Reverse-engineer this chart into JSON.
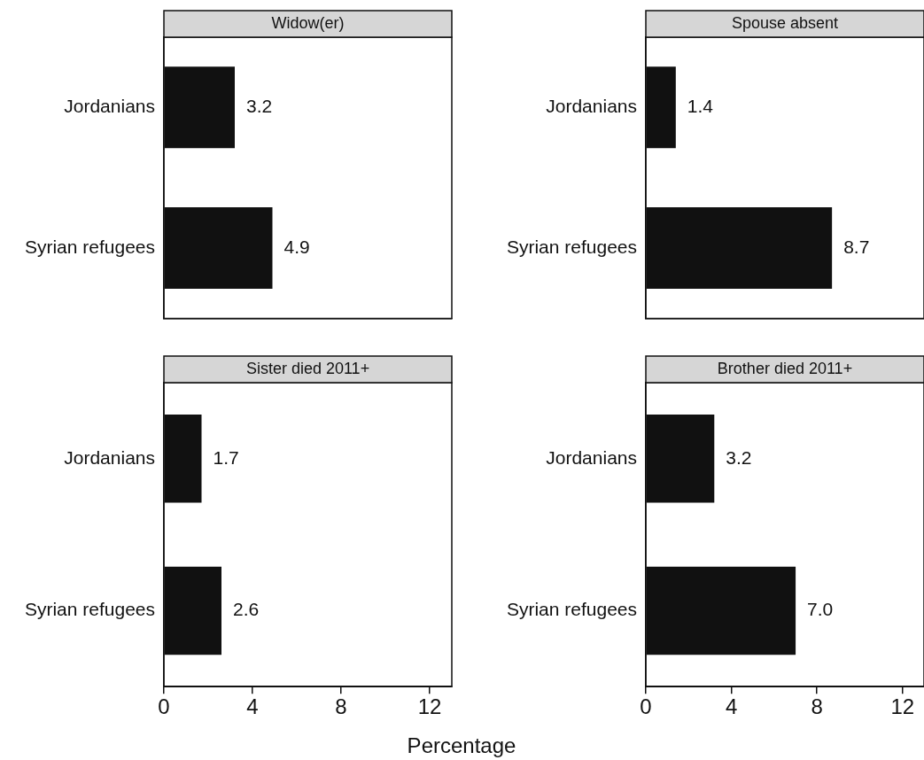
{
  "chart_data": [
    {
      "type": "bar",
      "orientation": "horizontal",
      "title": "Widow(er)",
      "categories": [
        "Jordanians",
        "Syrian refugees"
      ],
      "values": [
        3.2,
        4.9
      ],
      "value_labels": [
        "3.2",
        "4.9"
      ],
      "color": "#111111",
      "xlim": [
        0,
        13
      ],
      "xticks": [
        0,
        4,
        8,
        12
      ],
      "tick_labels": "y"
    },
    {
      "type": "bar",
      "orientation": "horizontal",
      "title": "Spouse absent",
      "categories": [
        "Jordanians",
        "Syrian refugees"
      ],
      "values": [
        1.4,
        8.7
      ],
      "value_labels": [
        "1.4",
        "8.7"
      ],
      "color": "#111111",
      "xlim": [
        0,
        13
      ],
      "xticks": [
        0,
        4,
        8,
        12
      ],
      "tick_labels": "y"
    },
    {
      "type": "bar",
      "orientation": "horizontal",
      "title": "Sister died 2011+",
      "categories": [
        "Jordanians",
        "Syrian refugees"
      ],
      "values": [
        1.7,
        2.6
      ],
      "value_labels": [
        "1.7",
        "2.6"
      ],
      "color": "#111111",
      "xlim": [
        0,
        13
      ],
      "xticks": [
        0,
        4,
        8,
        12
      ],
      "xlabel": "Percentage"
    },
    {
      "type": "bar",
      "orientation": "horizontal",
      "title": "Brother died 2011+",
      "categories": [
        "Jordanians",
        "Syrian refugees"
      ],
      "values": [
        3.2,
        7.0
      ],
      "value_labels": [
        "3.2",
        "7.0"
      ],
      "color": "#111111",
      "xlim": [
        0,
        13
      ],
      "xticks": [
        0,
        4,
        8,
        12
      ]
    }
  ]
}
